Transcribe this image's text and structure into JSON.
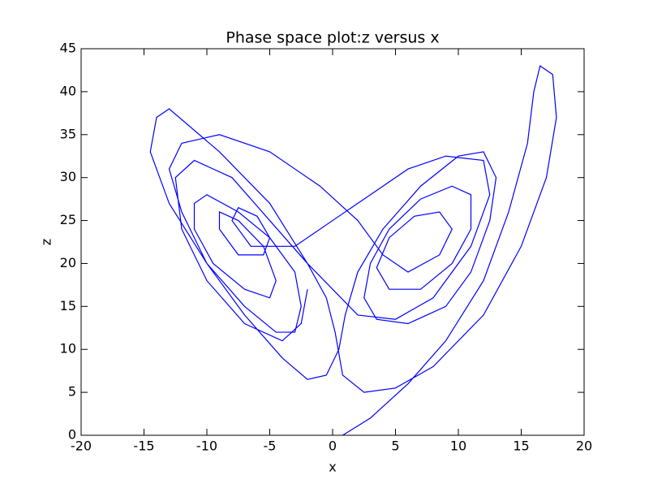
{
  "chart_data": {
    "type": "line",
    "title": "Phase space plot:z versus x",
    "x_label": "x",
    "y_label": "z",
    "x": [
      0.8,
      3,
      6,
      9,
      12,
      14,
      15.5,
      16,
      16.5,
      17.5,
      17.8,
      17,
      15,
      12,
      8,
      5,
      2.5,
      0.8,
      0.2,
      -0.5,
      -2,
      -5,
      -9,
      -13,
      -14,
      -14.5,
      -13,
      -10,
      -7,
      -4,
      -2,
      -0.5,
      0.5,
      1,
      2,
      4,
      7,
      10,
      12,
      13,
      12.5,
      11,
      9,
      6,
      3.5,
      2.5,
      3,
      4.5,
      7,
      9.5,
      11,
      11,
      9.5,
      7,
      4.5,
      3.5,
      4.5,
      6.5,
      8.5,
      9.5,
      8.5,
      6,
      4,
      2,
      -1,
      -5,
      -9,
      -12,
      -13,
      -12,
      -10,
      -7,
      -4.5,
      -3,
      -2.5,
      -3,
      -5,
      -7.5,
      -10,
      -11,
      -11,
      -9.5,
      -7,
      -5,
      -4.5,
      -5.5,
      -7.5,
      -9,
      -9,
      -7.5,
      -5.5,
      -5,
      -6,
      -7.5,
      -8,
      -6.5,
      -3,
      0,
      3,
      6,
      9,
      12,
      12.5,
      11,
      8,
      5,
      2,
      0,
      -2,
      -5,
      -8,
      -11,
      -12.5,
      -12,
      -10,
      -7,
      -4,
      -2.5,
      -2
    ],
    "series": [
      {
        "color": "#0000ff",
        "values": [
          0,
          2,
          6,
          11,
          18,
          26,
          34,
          40,
          43,
          42,
          37,
          30,
          22,
          14,
          8,
          5.5,
          5,
          7,
          12,
          16,
          20,
          27,
          33,
          38,
          37,
          33,
          27,
          20,
          14,
          9,
          6.5,
          7,
          10,
          14,
          19,
          24,
          29,
          32.5,
          33,
          30,
          25,
          19,
          15,
          13,
          13.5,
          16,
          20,
          24,
          27.5,
          29,
          28,
          24,
          20,
          17,
          17,
          19.5,
          23,
          25.5,
          26,
          24,
          21,
          19,
          21,
          25,
          29,
          33,
          35,
          34,
          31,
          26,
          20,
          15,
          12,
          12,
          15,
          19,
          23,
          26,
          28,
          27,
          24,
          20,
          17,
          16,
          18,
          22,
          25,
          26,
          24,
          21,
          21,
          23,
          25.5,
          26.5,
          25,
          22,
          22,
          25,
          28,
          31,
          32.5,
          32,
          28,
          22,
          16,
          13.5,
          14,
          17,
          20,
          25,
          30,
          32,
          30,
          24,
          18,
          13,
          11,
          13,
          17
        ]
      }
    ],
    "xlim": [
      -20,
      20
    ],
    "ylim": [
      0,
      45
    ],
    "xticks": [
      -20,
      -15,
      -10,
      -5,
      0,
      5,
      10,
      15,
      20
    ],
    "yticks": [
      0,
      5,
      10,
      15,
      20,
      25,
      30,
      35,
      40,
      45
    ]
  }
}
